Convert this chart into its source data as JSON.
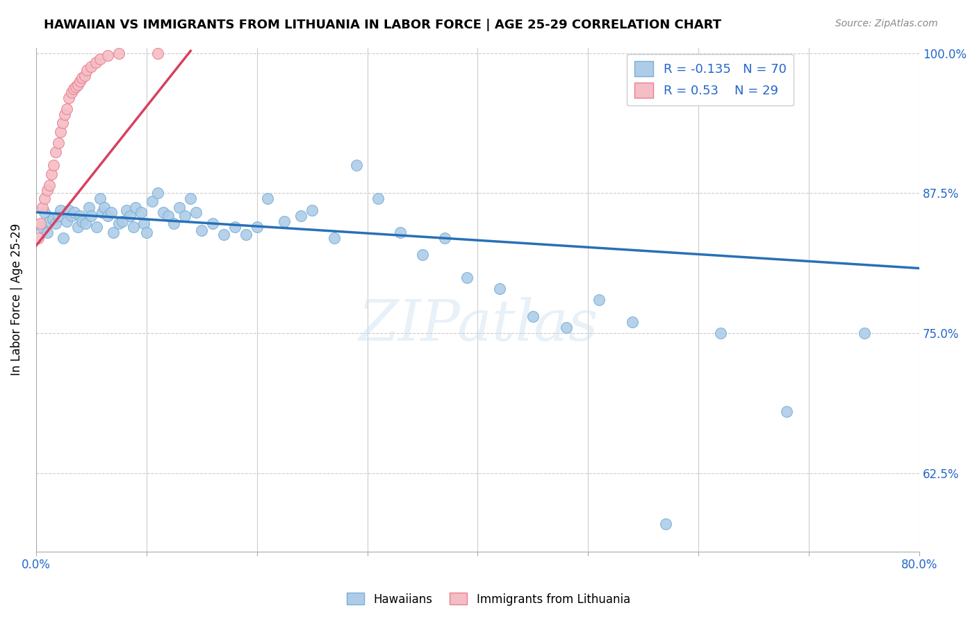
{
  "title": "HAWAIIAN VS IMMIGRANTS FROM LITHUANIA IN LABOR FORCE | AGE 25-29 CORRELATION CHART",
  "source": "Source: ZipAtlas.com",
  "ylabel": "In Labor Force | Age 25-29",
  "x_min": 0.0,
  "x_max": 0.8,
  "y_min": 0.555,
  "y_max": 1.005,
  "x_ticks": [
    0.0,
    0.1,
    0.2,
    0.3,
    0.4,
    0.5,
    0.6,
    0.7,
    0.8
  ],
  "y_ticks": [
    0.625,
    0.75,
    0.875,
    1.0
  ],
  "y_tick_labels": [
    "62.5%",
    "75.0%",
    "87.5%",
    "100.0%"
  ],
  "hawaiians_R": -0.135,
  "hawaiians_N": 70,
  "lithuania_R": 0.53,
  "lithuania_N": 29,
  "blue_color": "#aecce8",
  "blue_edge_color": "#7aafd4",
  "blue_line_color": "#2870b8",
  "pink_color": "#f5bdc5",
  "pink_edge_color": "#e8808f",
  "pink_line_color": "#d84060",
  "watermark": "ZIPatlas",
  "hawaiians_x": [
    0.005,
    0.008,
    0.01,
    0.012,
    0.015,
    0.018,
    0.02,
    0.022,
    0.025,
    0.028,
    0.03,
    0.032,
    0.035,
    0.038,
    0.04,
    0.042,
    0.045,
    0.048,
    0.05,
    0.055,
    0.058,
    0.06,
    0.062,
    0.065,
    0.068,
    0.07,
    0.075,
    0.078,
    0.082,
    0.085,
    0.088,
    0.09,
    0.095,
    0.098,
    0.1,
    0.105,
    0.11,
    0.115,
    0.12,
    0.125,
    0.13,
    0.135,
    0.14,
    0.145,
    0.15,
    0.16,
    0.17,
    0.18,
    0.19,
    0.2,
    0.21,
    0.225,
    0.24,
    0.25,
    0.27,
    0.29,
    0.31,
    0.33,
    0.35,
    0.37,
    0.39,
    0.42,
    0.45,
    0.48,
    0.51,
    0.54,
    0.57,
    0.62,
    0.68,
    0.75
  ],
  "hawaiians_y": [
    0.845,
    0.858,
    0.84,
    0.85,
    0.852,
    0.848,
    0.855,
    0.86,
    0.835,
    0.85,
    0.86,
    0.855,
    0.858,
    0.845,
    0.855,
    0.85,
    0.848,
    0.862,
    0.855,
    0.845,
    0.87,
    0.858,
    0.862,
    0.855,
    0.858,
    0.84,
    0.848,
    0.85,
    0.86,
    0.855,
    0.845,
    0.862,
    0.858,
    0.848,
    0.84,
    0.868,
    0.875,
    0.858,
    0.855,
    0.848,
    0.862,
    0.855,
    0.87,
    0.858,
    0.842,
    0.848,
    0.838,
    0.845,
    0.838,
    0.845,
    0.87,
    0.85,
    0.855,
    0.86,
    0.835,
    0.9,
    0.87,
    0.84,
    0.82,
    0.835,
    0.8,
    0.79,
    0.765,
    0.755,
    0.78,
    0.76,
    0.58,
    0.75,
    0.68,
    0.75
  ],
  "lithuania_x": [
    0.002,
    0.004,
    0.006,
    0.008,
    0.01,
    0.012,
    0.014,
    0.016,
    0.018,
    0.02,
    0.022,
    0.024,
    0.026,
    0.028,
    0.03,
    0.032,
    0.034,
    0.036,
    0.038,
    0.04,
    0.042,
    0.044,
    0.046,
    0.05,
    0.054,
    0.058,
    0.065,
    0.075,
    0.11
  ],
  "lithuania_y": [
    0.835,
    0.848,
    0.862,
    0.87,
    0.878,
    0.882,
    0.892,
    0.9,
    0.912,
    0.92,
    0.93,
    0.938,
    0.945,
    0.95,
    0.96,
    0.965,
    0.968,
    0.97,
    0.972,
    0.975,
    0.978,
    0.98,
    0.985,
    0.988,
    0.992,
    0.995,
    0.998,
    1.0,
    1.0
  ],
  "hawaii_trendline_x0": 0.0,
  "hawaii_trendline_x1": 0.8,
  "hawaii_trendline_y0": 0.858,
  "hawaii_trendline_y1": 0.808,
  "lith_trendline_x0": 0.0,
  "lith_trendline_x1": 0.14,
  "lith_trendline_y0": 0.828,
  "lith_trendline_y1": 1.002
}
